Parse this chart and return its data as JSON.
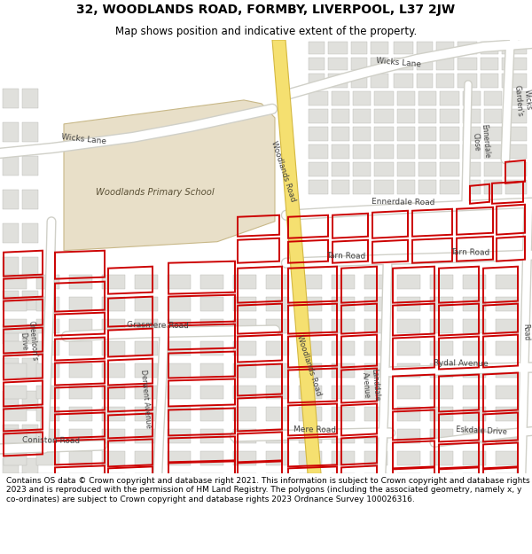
{
  "title": "32, WOODLANDS ROAD, FORMBY, LIVERPOOL, L37 2JW",
  "subtitle": "Map shows position and indicative extent of the property.",
  "footer": "Contains OS data © Crown copyright and database right 2021. This information is subject to Crown copyright and database rights 2023 and is reproduced with the permission of HM Land Registry. The polygons (including the associated geometry, namely x, y co-ordinates) are subject to Crown copyright and database rights 2023 Ordnance Survey 100026316.",
  "bg_color": "#f2f2ee",
  "road_color": "#ffffff",
  "road_border_color": "#d0d0c8",
  "major_road_color": "#f5e070",
  "major_road_border": "#d4b840",
  "building_color": "#e0e0dc",
  "building_border": "#b8b8b4",
  "school_color": "#e8dfc8",
  "school_border": "#c8b888",
  "red_line_color": "#cc0000",
  "street_label_color": "#404040",
  "title_fontsize": 10,
  "subtitle_fontsize": 8.5,
  "footer_fontsize": 6.5
}
